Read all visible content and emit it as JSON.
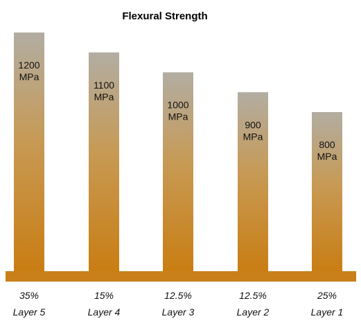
{
  "chart_data": {
    "type": "bar",
    "title": "Flexural Strength",
    "categories": [
      "Layer 5",
      "Layer 4",
      "Layer 3",
      "Layer 2",
      "Layer 1"
    ],
    "percentages": [
      "35%",
      "15%",
      "12.5%",
      "12.5%",
      "25%"
    ],
    "values": [
      1200,
      1100,
      1000,
      900,
      800
    ],
    "value_labels": [
      "1200",
      "1100",
      "1000",
      "900",
      "800"
    ],
    "unit": "MPa",
    "xlabel": "",
    "ylabel": "",
    "ylim": [
      0,
      1200
    ],
    "grid": false,
    "legend": "none",
    "colors": {
      "bar_top": "#b2ada2",
      "bar_bottom": "#c97d12",
      "base_band": "#c9801a"
    }
  }
}
